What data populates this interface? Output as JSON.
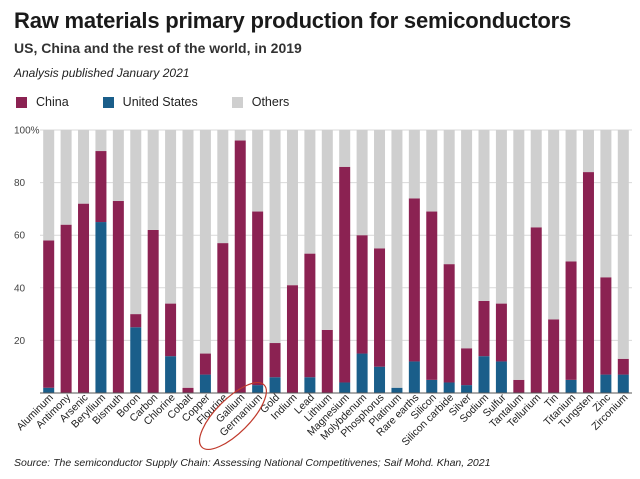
{
  "title": "Raw materials primary production for semiconductors",
  "subtitle": "US, China and the rest of the world, in 2019",
  "note": "Analysis published January 2021",
  "source": "Source: The semiconductor Supply Chain: Assessing National Competitivenes; Saif Mohd. Khan, 2021",
  "colors": {
    "china": "#8b2252",
    "us": "#1a5e8a",
    "others": "#cfcfcf",
    "grid": "#d9d9d9",
    "annotation": "#c0392b"
  },
  "legend": [
    {
      "label": "China",
      "color": "#8b2252"
    },
    {
      "label": "United States",
      "color": "#1a5e8a"
    },
    {
      "label": "Others",
      "color": "#cfcfcf"
    }
  ],
  "chart_data": {
    "type": "bar",
    "stacked": true,
    "categories": [
      "Aluminum",
      "Antimony",
      "Arsenic",
      "Beryllium",
      "Bismuth",
      "Boron",
      "Carbon",
      "Chlorine",
      "Cobalt",
      "Copper",
      "Flourine",
      "Gallium",
      "Germanium",
      "Gold",
      "Indium",
      "Lead",
      "Lithium",
      "Magnesium",
      "Molybdenum",
      "Phosphorus",
      "Platinum",
      "Rare earths",
      "Silicon",
      "Silicon carbide",
      "Silver",
      "Sodium",
      "Sulfur",
      "Tantalum",
      "Tellurium",
      "Tin",
      "Titanium",
      "Tungsten",
      "Zinc",
      "Zirconium"
    ],
    "series": [
      {
        "name": "China",
        "values": [
          56,
          64,
          72,
          27,
          73,
          5,
          62,
          20,
          2,
          8,
          57,
          96,
          66,
          13,
          41,
          47,
          24,
          82,
          45,
          45,
          0,
          62,
          64,
          45,
          14,
          21,
          22,
          5,
          63,
          28,
          45,
          84,
          37,
          6
        ]
      },
      {
        "name": "United States",
        "values": [
          2,
          0,
          0,
          65,
          0,
          25,
          0,
          14,
          0,
          7,
          0,
          0,
          3,
          6,
          0,
          6,
          0,
          4,
          15,
          10,
          2,
          12,
          5,
          4,
          3,
          14,
          12,
          0,
          0,
          0,
          5,
          0,
          7,
          7
        ]
      },
      {
        "name": "Others",
        "values": [
          42,
          36,
          28,
          8,
          27,
          70,
          38,
          66,
          98,
          85,
          43,
          4,
          31,
          81,
          59,
          47,
          76,
          14,
          40,
          45,
          98,
          26,
          31,
          51,
          83,
          65,
          66,
          95,
          37,
          72,
          50,
          16,
          56,
          87
        ]
      }
    ],
    "ylim": [
      0,
      100
    ],
    "yticks": [
      0,
      20,
      40,
      60,
      80,
      100
    ],
    "ytick_labels": [
      "",
      "20",
      "40",
      "60",
      "80",
      "100%"
    ],
    "circled_categories": [
      "Gallium",
      "Germanium"
    ],
    "grid": true,
    "legend_position": "top-left"
  }
}
